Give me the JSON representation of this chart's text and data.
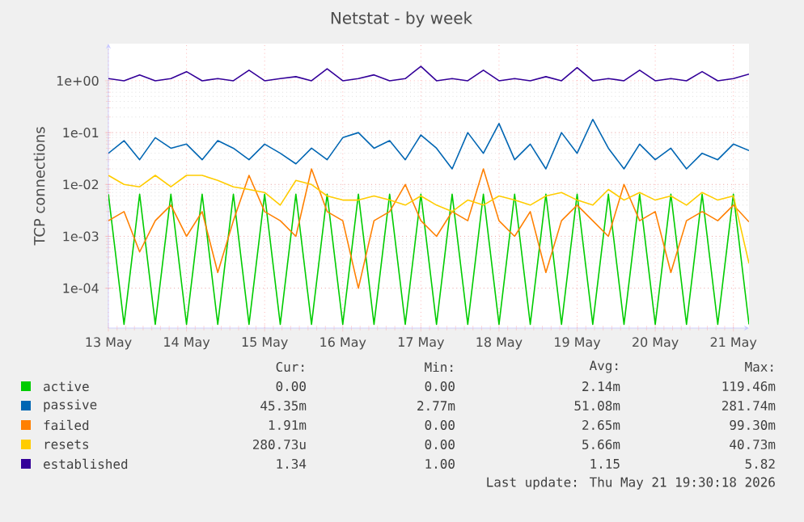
{
  "chart_data": {
    "type": "line",
    "title": "Netstat - by week",
    "ylabel": "TCP connections",
    "log": "y",
    "grid": true,
    "legend": "bottom",
    "xlim": [
      "2026-05-13",
      "2026-05-21T04:48"
    ],
    "xticks": [
      {
        "value": "2026-05-13",
        "label": "13 May"
      },
      {
        "value": "2026-05-14",
        "label": "14 May"
      },
      {
        "value": "2026-05-15",
        "label": "15 May"
      },
      {
        "value": "2026-05-16",
        "label": "16 May"
      },
      {
        "value": "2026-05-17",
        "label": "17 May"
      },
      {
        "value": "2026-05-18",
        "label": "18 May"
      },
      {
        "value": "2026-05-19",
        "label": "19 May"
      },
      {
        "value": "2026-05-20",
        "label": "20 May"
      },
      {
        "value": "2026-05-21",
        "label": "21 May"
      }
    ],
    "ylim": [
      1.7e-05,
      5.2
    ],
    "yticks": [
      {
        "value": 0.0001,
        "label": "1e-04"
      },
      {
        "value": 0.001,
        "label": "1e-03"
      },
      {
        "value": 0.01,
        "label": "1e-02"
      },
      {
        "value": 0.1,
        "label": "1e-01"
      },
      {
        "value": 1,
        "label": "1e+00"
      }
    ],
    "x": [
      "2026-05-13T00:00",
      "2026-05-13T04:48",
      "2026-05-13T09:36",
      "2026-05-13T14:24",
      "2026-05-13T19:12",
      "2026-05-14T00:00",
      "2026-05-14T04:48",
      "2026-05-14T09:36",
      "2026-05-14T14:24",
      "2026-05-14T19:12",
      "2026-05-15T00:00",
      "2026-05-15T04:48",
      "2026-05-15T09:36",
      "2026-05-15T14:24",
      "2026-05-15T19:12",
      "2026-05-16T00:00",
      "2026-05-16T04:48",
      "2026-05-16T09:36",
      "2026-05-16T14:24",
      "2026-05-16T19:12",
      "2026-05-17T00:00",
      "2026-05-17T04:48",
      "2026-05-17T09:36",
      "2026-05-17T14:24",
      "2026-05-17T19:12",
      "2026-05-18T00:00",
      "2026-05-18T04:48",
      "2026-05-18T09:36",
      "2026-05-18T14:24",
      "2026-05-18T19:12",
      "2026-05-19T00:00",
      "2026-05-19T04:48",
      "2026-05-19T09:36",
      "2026-05-19T14:24",
      "2026-05-19T19:12",
      "2026-05-20T00:00",
      "2026-05-20T04:48",
      "2026-05-20T09:36",
      "2026-05-20T14:24",
      "2026-05-20T19:12",
      "2026-05-21T00:00",
      "2026-05-21T04:48"
    ],
    "series": [
      {
        "name": "active",
        "color": "#00cc00",
        "values": [
          0.0065,
          2e-05,
          0.0065,
          2e-05,
          0.0065,
          2e-05,
          0.0065,
          2e-05,
          0.0065,
          2e-05,
          0.0065,
          2e-05,
          0.0065,
          2e-05,
          0.0065,
          2e-05,
          0.0065,
          2e-05,
          0.0065,
          2e-05,
          0.0065,
          2e-05,
          0.0065,
          2e-05,
          0.0065,
          2e-05,
          0.0065,
          2e-05,
          0.0065,
          2e-05,
          0.0065,
          2e-05,
          0.0065,
          2e-05,
          0.0065,
          2e-05,
          0.0065,
          2e-05,
          0.0065,
          2e-05,
          0.0065,
          2e-05
        ]
      },
      {
        "name": "passive",
        "color": "#0066b3",
        "values": [
          0.04,
          0.07,
          0.03,
          0.08,
          0.05,
          0.06,
          0.03,
          0.07,
          0.05,
          0.03,
          0.06,
          0.04,
          0.025,
          0.05,
          0.03,
          0.08,
          0.1,
          0.05,
          0.07,
          0.03,
          0.09,
          0.05,
          0.02,
          0.1,
          0.04,
          0.15,
          0.03,
          0.06,
          0.02,
          0.1,
          0.04,
          0.18,
          0.05,
          0.02,
          0.06,
          0.03,
          0.05,
          0.02,
          0.04,
          0.03,
          0.06,
          0.045
        ]
      },
      {
        "name": "failed",
        "color": "#ff8000",
        "values": [
          0.002,
          0.003,
          0.0005,
          0.002,
          0.004,
          0.001,
          0.003,
          0.0002,
          0.002,
          0.015,
          0.003,
          0.002,
          0.001,
          0.02,
          0.003,
          0.002,
          0.0001,
          0.002,
          0.003,
          0.01,
          0.002,
          0.001,
          0.003,
          0.002,
          0.02,
          0.002,
          0.001,
          0.003,
          0.0002,
          0.002,
          0.004,
          0.002,
          0.001,
          0.01,
          0.002,
          0.003,
          0.0002,
          0.002,
          0.003,
          0.002,
          0.004,
          0.0019
        ]
      },
      {
        "name": "resets",
        "color": "#ffcc00",
        "values": [
          0.015,
          0.01,
          0.009,
          0.015,
          0.009,
          0.015,
          0.015,
          0.012,
          0.009,
          0.008,
          0.007,
          0.004,
          0.012,
          0.01,
          0.006,
          0.005,
          0.005,
          0.006,
          0.005,
          0.004,
          0.006,
          0.004,
          0.003,
          0.005,
          0.004,
          0.006,
          0.005,
          0.004,
          0.006,
          0.007,
          0.005,
          0.004,
          0.008,
          0.005,
          0.007,
          0.005,
          0.006,
          0.004,
          0.007,
          0.005,
          0.006,
          0.0003
        ]
      },
      {
        "name": "established",
        "color": "#330099",
        "values": [
          1.1,
          1.0,
          1.3,
          1.0,
          1.1,
          1.5,
          1.0,
          1.1,
          1.0,
          1.6,
          1.0,
          1.1,
          1.2,
          1.0,
          1.7,
          1.0,
          1.1,
          1.3,
          1.0,
          1.1,
          1.9,
          1.0,
          1.1,
          1.0,
          1.6,
          1.0,
          1.1,
          1.0,
          1.2,
          1.0,
          1.8,
          1.0,
          1.1,
          1.0,
          1.6,
          1.0,
          1.1,
          1.0,
          1.5,
          1.0,
          1.1,
          1.34
        ]
      }
    ],
    "annotations": [
      "Cur:",
      "Min:",
      "Avg:",
      "Max:",
      "0.00",
      "0.00",
      "2.14m",
      "119.46m",
      "45.35m",
      "2.77m",
      "51.08m",
      "281.74m",
      "1.91m",
      "0.00",
      "2.65m",
      "99.30m",
      "280.73u",
      "0.00",
      "5.66m",
      "40.73m",
      "1.34",
      "1.00",
      "1.15",
      "5.82",
      "Last update: Thu May 21 19:30:18 2026"
    ]
  }
}
